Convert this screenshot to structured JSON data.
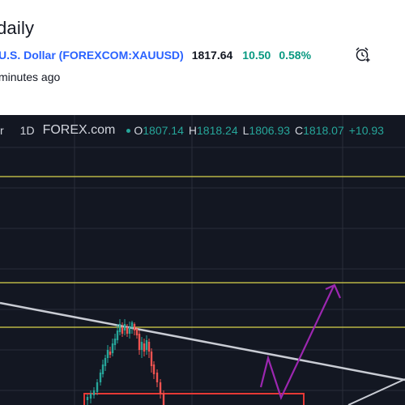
{
  "header": {
    "title": "daily",
    "symbol": "U.S. Dollar (FOREXCOM:XAUUSD)",
    "price": "1817.64",
    "change": "10.50",
    "change_pct": "0.58%",
    "posted": "minutes ago",
    "alarm_icon": "alarm-clock-plus-icon"
  },
  "chart": {
    "legend": {
      "symbol_fragment": "r",
      "timeframe": "1D",
      "source": "FOREX.com",
      "open_key": "O",
      "open": "1807.14",
      "high_key": "H",
      "high": "1818.24",
      "low_key": "L",
      "low": "1806.93",
      "close_key": "C",
      "close": "1818.07",
      "change": "+10.93"
    },
    "colors": {
      "background": "#131722",
      "grid": "#2a2e39",
      "horizontal_level": "#d9d44c",
      "trendline": "#c9ccd4",
      "projection": "#9c27b0",
      "zone": "#e53935",
      "up_candle": "#26a69a",
      "down_candle": "#ef5350"
    }
  }
}
